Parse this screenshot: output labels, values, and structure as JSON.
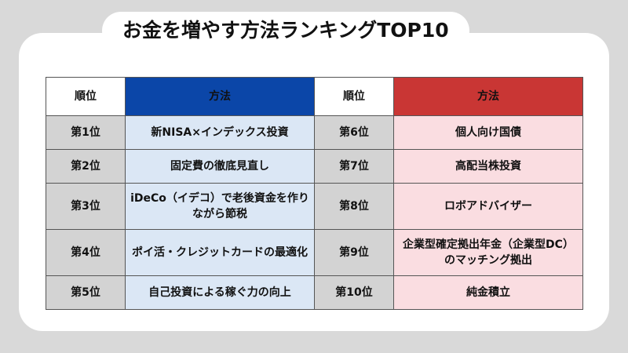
{
  "title": "お金を増やす方法ランキングTOP10",
  "header": {
    "rank_left": "順位",
    "method_left": "方法",
    "rank_right": "順位",
    "method_right": "方法"
  },
  "rows": [
    {
      "rank_left": "第1位",
      "method_left": "新NISA×インデックス投資",
      "rank_right": "第6位",
      "method_right": "個人向け国債"
    },
    {
      "rank_left": "第2位",
      "method_left": "固定費の徹底見直し",
      "rank_right": "第7位",
      "method_right": "高配当株投資"
    },
    {
      "rank_left": "第3位",
      "method_left": "iDeCo（イデコ）で老後資金を作りながら節税",
      "rank_right": "第8位",
      "method_right": "ロボアドバイザー"
    },
    {
      "rank_left": "第4位",
      "method_left": "ポイ活・クレジットカードの最適化",
      "rank_right": "第9位",
      "method_right": "企業型確定拠出年金（企業型DC）のマッチング拠出"
    },
    {
      "rank_left": "第5位",
      "method_left": "自己投資による稼ぐ力の向上",
      "rank_right": "第10位",
      "method_right": "純金積立"
    }
  ],
  "colors": {
    "background": "#d9d9d9",
    "header_left": "#0b46a8",
    "header_right": "#c93634",
    "rank_cell": "#d3d3d3",
    "left_cell": "#dbe7f5",
    "right_cell": "#fadde1"
  }
}
